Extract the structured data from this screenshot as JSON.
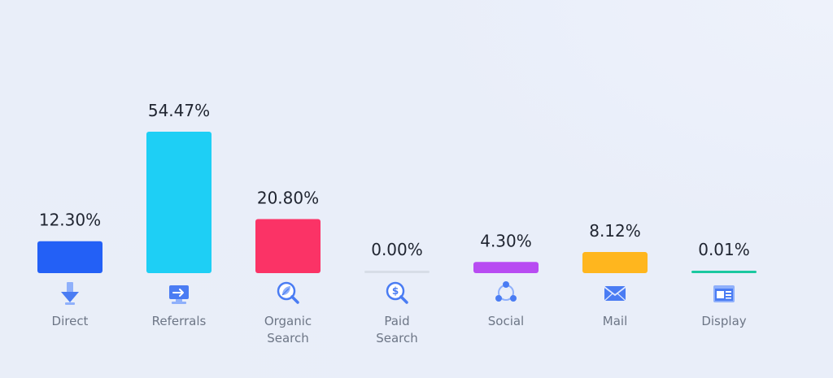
{
  "chart_data": {
    "type": "bar",
    "categories": [
      [
        "Direct"
      ],
      [
        "Referrals"
      ],
      [
        "Organic",
        "Search"
      ],
      [
        "Paid",
        "Search"
      ],
      [
        "Social"
      ],
      [
        "Mail"
      ],
      [
        "Display"
      ]
    ],
    "values": [
      12.3,
      54.47,
      20.8,
      0.0,
      4.3,
      8.12,
      0.01
    ],
    "value_labels": [
      "12.30%",
      "54.47%",
      "20.80%",
      "0.00%",
      "4.30%",
      "8.12%",
      "0.01%"
    ],
    "colors": [
      "#2360f6",
      "#1ecff5",
      "#fb3366",
      "#d7dde7",
      "#b84cf2",
      "#ffb61e",
      "#1bc8a0"
    ],
    "icons": [
      "arrow-down-icon",
      "referral-screen-icon",
      "organic-search-icon",
      "paid-search-icon",
      "social-share-icon",
      "mail-icon",
      "display-window-icon"
    ],
    "ylim": [
      0,
      54.47
    ],
    "unit": "%",
    "grid": false,
    "legend": "none"
  }
}
